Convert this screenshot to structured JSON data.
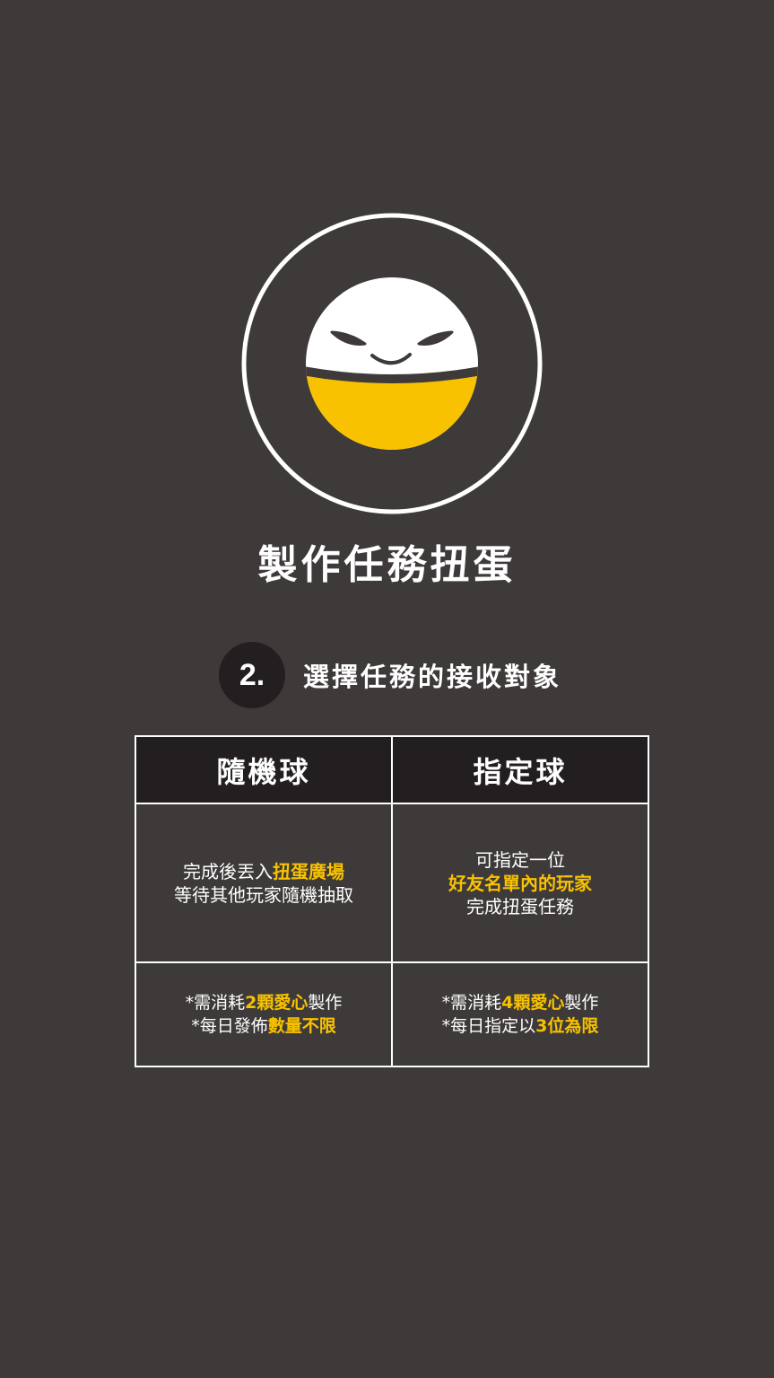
{
  "colors": {
    "background": "#3e3a39",
    "header_bg": "#231f20",
    "accent": "#f8c200",
    "text": "#ffffff"
  },
  "logo": {
    "icon": "smiling-capsule-mascot-icon"
  },
  "title": "製作任務扭蛋",
  "step": {
    "number": "2.",
    "text": "選擇任務的接收對象"
  },
  "table": {
    "headers": [
      "隨機球",
      "指定球"
    ],
    "random": {
      "desc_line1_pre": "完成後丟入",
      "desc_line1_hl": "扭蛋廣場",
      "desc_line2": "等待其他玩家隨機抽取",
      "cost_line1_pre": "*需消耗",
      "cost_line1_hl": "2顆愛心",
      "cost_line1_post": "製作",
      "cost_line2_pre": "*每日發佈",
      "cost_line2_hl": "數量不限"
    },
    "assigned": {
      "desc_line1": "可指定一位",
      "desc_line2_hl": "好友名單內的玩家",
      "desc_line3": "完成扭蛋任務",
      "cost_line1_pre": "*需消耗",
      "cost_line1_hl": "4顆愛心",
      "cost_line1_post": "製作",
      "cost_line2_pre": "*每日指定以",
      "cost_line2_hl": "3位為限"
    }
  }
}
